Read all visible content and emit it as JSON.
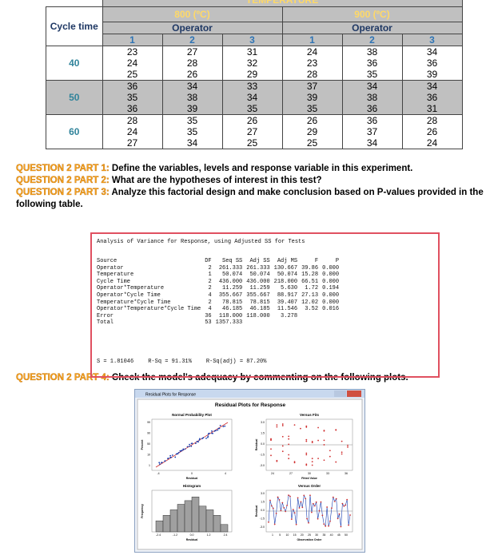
{
  "table": {
    "super_header": "TEMPERATURE",
    "temperatures": [
      "800 (ºC)",
      "900 (ºC)"
    ],
    "operator_labels": [
      "Operator",
      "Operator"
    ],
    "row_header": "Cycle time",
    "operators": [
      "1",
      "2",
      "3",
      "1",
      "2",
      "3"
    ],
    "groups": [
      {
        "cycle_time": "40",
        "rows": [
          [
            23,
            27,
            31,
            24,
            38,
            34
          ],
          [
            24,
            28,
            32,
            23,
            36,
            36
          ],
          [
            25,
            26,
            29,
            28,
            35,
            39
          ]
        ]
      },
      {
        "cycle_time": "50",
        "rows": [
          [
            36,
            34,
            33,
            37,
            34,
            34
          ],
          [
            35,
            38,
            34,
            39,
            38,
            36
          ],
          [
            36,
            39,
            35,
            35,
            36,
            31
          ]
        ]
      },
      {
        "cycle_time": "60",
        "rows": [
          [
            28,
            35,
            26,
            26,
            36,
            28
          ],
          [
            24,
            35,
            27,
            29,
            37,
            26
          ],
          [
            27,
            34,
            25,
            25,
            34,
            24
          ]
        ]
      }
    ]
  },
  "questions": [
    {
      "label": "QUESTION 2 PART 1:",
      "text": "Define the variables, levels and response variable in this experiment."
    },
    {
      "label": "QUESTION 2 PART 2:",
      "text": "What are the hypotheses of interest in this test?"
    },
    {
      "label": "QUESTION 2 PART 3:",
      "text": "Analyze this factorial design and make conclusion based on P-values provided in the following table."
    },
    {
      "label": "QUESTION 2 PART 4:",
      "text": "Check the model's adequacy by commenting on the following plots."
    }
  ],
  "anova": {
    "title": "Analysis of Variance for Response, using Adjusted SS for Tests",
    "columns": [
      "Source",
      "DF",
      "Seq SS",
      "Adj SS",
      "Adj MS",
      "F",
      "P"
    ],
    "rows": [
      [
        "Operator",
        "2",
        "261.333",
        "261.333",
        "130.667",
        "39.86",
        "0.000"
      ],
      [
        "Temperature",
        "1",
        "50.074",
        "50.074",
        "50.074",
        "15.28",
        "0.000"
      ],
      [
        "Cycle Time",
        "2",
        "436.000",
        "436.000",
        "218.000",
        "66.51",
        "0.000"
      ],
      [
        "Operator*Temperature",
        "2",
        "11.259",
        "11.259",
        "5.630",
        "1.72",
        "0.194"
      ],
      [
        "Operator*Cycle Time",
        "4",
        "355.667",
        "355.667",
        "88.917",
        "27.13",
        "0.000"
      ],
      [
        "Temperature*Cycle Time",
        "2",
        "78.815",
        "78.815",
        "39.407",
        "12.02",
        "0.000"
      ],
      [
        "Operator*Temperature*Cycle Time",
        "4",
        "46.185",
        "46.185",
        "11.546",
        "3.52",
        "0.016"
      ],
      [
        "Error",
        "36",
        "118.000",
        "118.000",
        "3.278"
      ],
      [
        "Total",
        "53",
        "1357.333"
      ]
    ],
    "summary": [
      "S = 1.81046",
      "R-Sq = 91.31%",
      "R-Sq(adj) = 87.20%"
    ]
  },
  "residual_plots": {
    "window_title": "Residual Plots for Response",
    "title": "Residual Plots for Response",
    "panels": [
      {
        "title": "Normal Probability Plot",
        "xlabel": "Residual",
        "ylabel": "Percent",
        "xticks": [
          "-4",
          "0",
          "4"
        ],
        "yticks": [
          "99",
          "90",
          "50",
          "10",
          "1"
        ]
      },
      {
        "title": "Versus Fits",
        "xlabel": "Fitted Value",
        "ylabel": "Residual",
        "xticks": [
          "24",
          "27",
          "30",
          "33",
          "36"
        ],
        "yticks": [
          "3.0",
          "1.5",
          "0.0",
          "-1.5",
          "-3.0"
        ]
      },
      {
        "title": "Histogram",
        "xlabel": "Residual",
        "ylabel": "Frequency",
        "xticks": [
          "-2.4",
          "-1.2",
          "0.0",
          "1.2",
          "2.4"
        ],
        "yticks": []
      },
      {
        "title": "Versus Order",
        "xlabel": "Observation Order",
        "ylabel": "Residual",
        "xticks": [
          "1",
          "5",
          "10",
          "15",
          "20",
          "25",
          "30",
          "35",
          "40",
          "45",
          "50"
        ],
        "yticks": [
          "3.0",
          "1.5",
          "0.0",
          "-1.5",
          "-3.0"
        ]
      }
    ]
  }
}
